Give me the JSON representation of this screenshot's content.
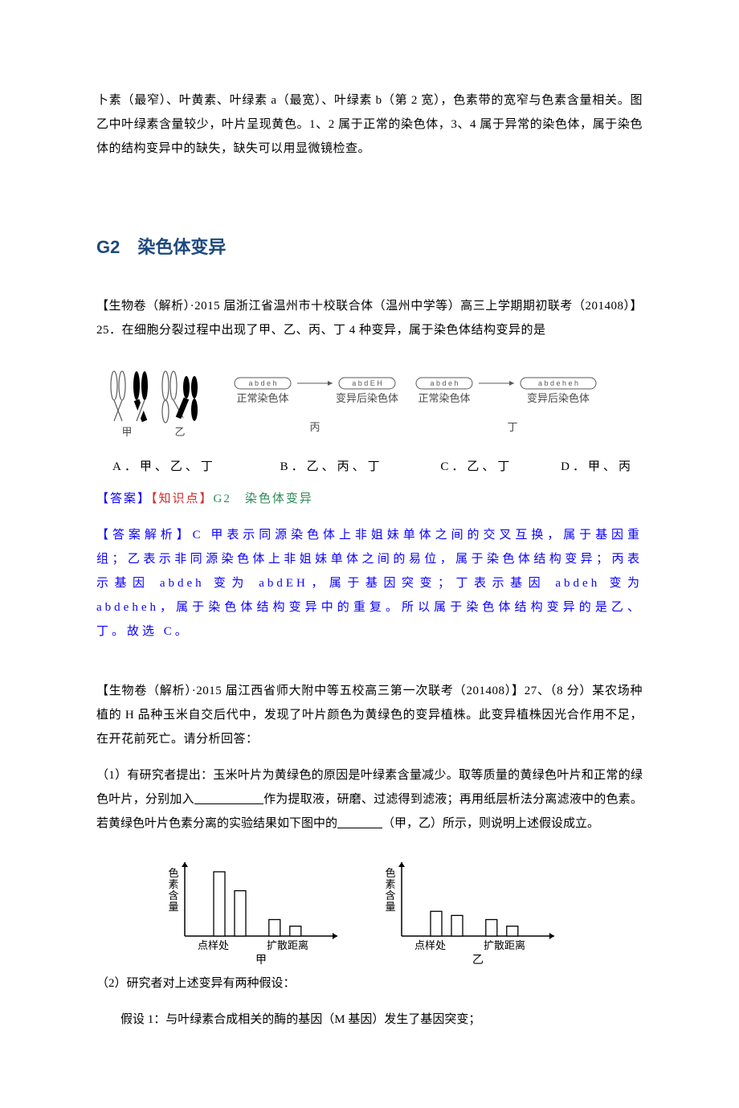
{
  "intro": {
    "text": "卜素（最窄）、叶黄素、叶绿素 a（最宽）、叶绿素 b（第 2 宽），色素带的宽窄与色素含量相关。图乙中叶绿素含量较少，叶片呈现黄色。1、2 属于正常的染色体，3、4 属于异常的染色体，属于染色体的结构变异中的缺失，缺失可以用显微镜检查。"
  },
  "section": {
    "label": "G2　染色体变异"
  },
  "q1": {
    "stem": "【生物卷（解析）·2015 届浙江省温州市十校联合体（温州中学等）高三上学期期初联考（201408）】25．在细胞分裂过程中出现了甲、乙、丙、丁 4 种变异，属于染色体结构变异的是",
    "diagram": {
      "jia": "甲",
      "yi": "乙",
      "bing": "丙",
      "ding": "丁",
      "normal": "正常染色体",
      "after": "变异后染色体",
      "geneNormal": "a b d e h",
      "geneBing": "a b d E H",
      "geneDing": "a b d e h e h"
    },
    "options": {
      "A": "A．甲、乙、丁",
      "B": "B．乙、丙、丁",
      "C": "C．乙、丁",
      "D": "D．甲、丙"
    },
    "answer": {
      "ans": "【答案】",
      "kp": "【知识点】",
      "kpv": "G2　染色体变异"
    },
    "explain": "【答案解析】C 甲表示同源染色体上非姐妹单体之间的交叉互换，属于基因重组；乙表示非同源染色体上非姐妹单体之间的易位，属于染色体结构变异；丙表示基因 abdeh 变为 abdEH，属于基因突变；丁表示基因 abdeh 变为 abdeheh，属于染色体结构变异中的重复。所以属于染色体结构变异的是乙、丁。故选 C。"
  },
  "q2": {
    "stemA": "【生物卷（解析）·2015 届江西省师大附中等五校高三第一次联考（201408）】27、（8 分）某农场种植的 H 品种玉米自交后代中，发现了叶片颜色为黄绿色的变异植株。此变异植株因光合作用不足，在开花前死亡。请分析回答：",
    "sub1a": "（1）有研究者提出：玉米叶片为黄绿色的原因是叶绿素含量减少。取等质量的黄绿色叶片和正常的绿色叶片，分别加入",
    "sub1b": "作为提取液，研磨、过滤得到滤液；再用纸层析法分离滤液中的色素。若黄绿色叶片色素分离的实验结果如下图中的",
    "sub1c": "（甲，乙）所示，则说明上述假设成立。",
    "chart": {
      "ylabel": "色素含量",
      "xstart": "点样处",
      "xend": "扩散距离",
      "capA": "甲",
      "capB": "乙",
      "barsA": [
        78,
        55,
        20,
        12
      ],
      "barsB": [
        30,
        25,
        20,
        12
      ],
      "barW": 14,
      "barGap": 12,
      "yMax": 78
    },
    "sub2": "（2）研究者对上述变异有两种假设：",
    "hyp1": "假设 1：与叶绿素合成相关的酶的基因（M 基因）发生了基因突变；"
  },
  "colors": {
    "text": "#000000",
    "blue": "#0a00ff",
    "red": "#d22b2b",
    "green": "#2e8b57",
    "heading": "#1f497d",
    "figureStroke": "#5a5a5a",
    "bg": "#ffffff"
  }
}
